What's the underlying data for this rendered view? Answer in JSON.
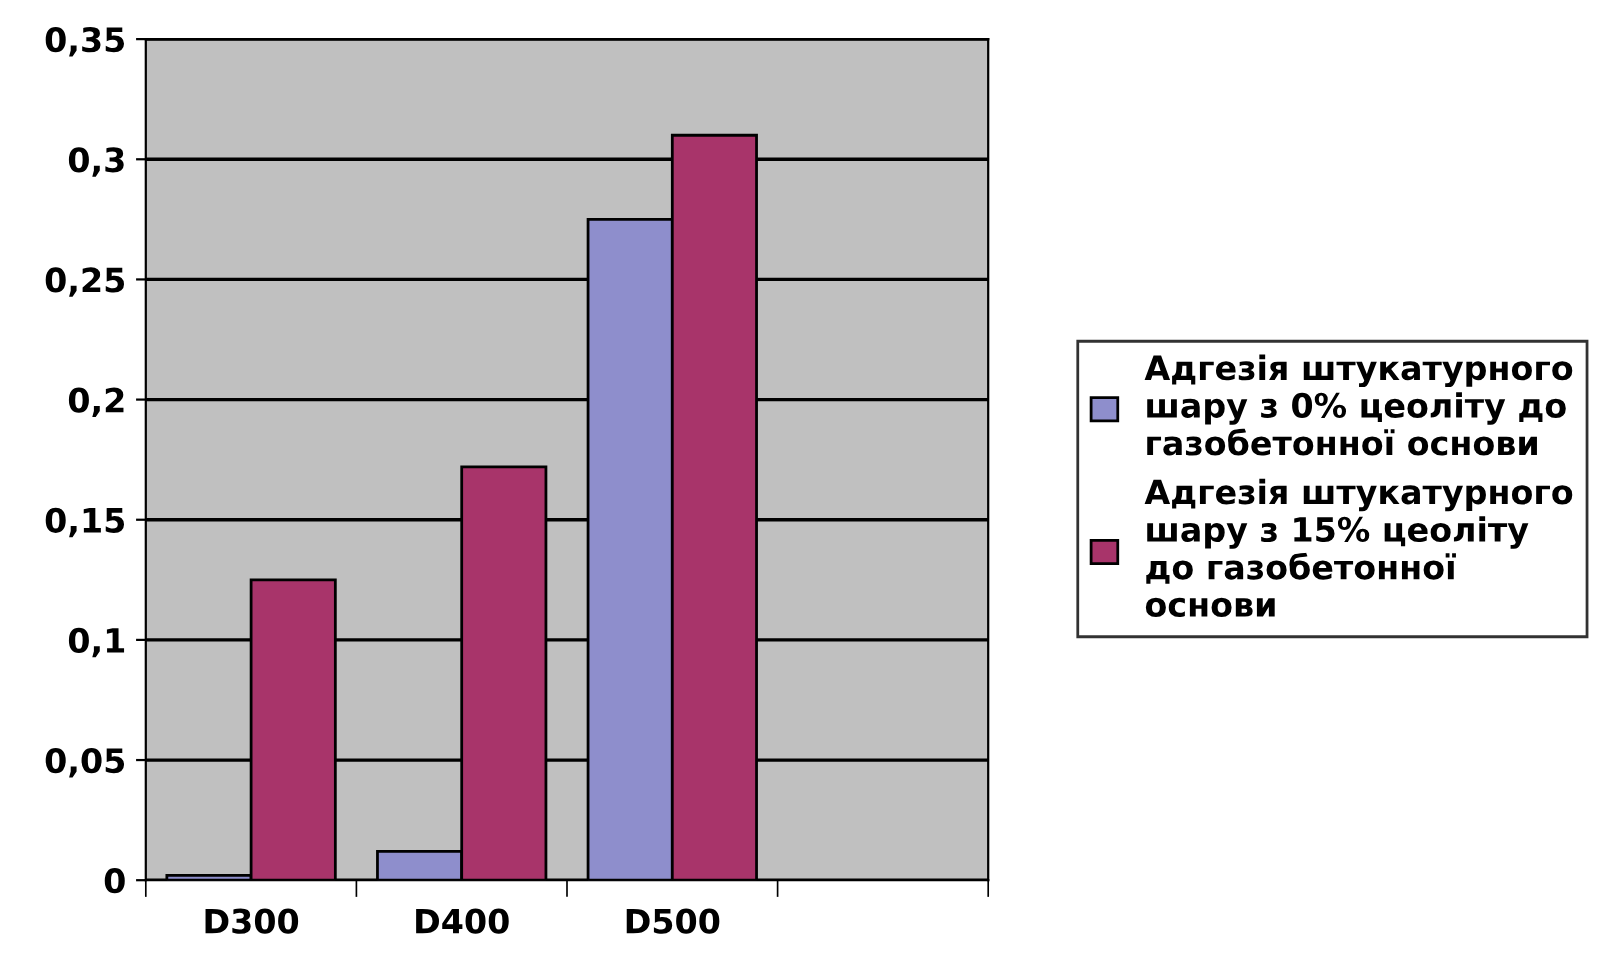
{
  "chart_data": {
    "type": "bar",
    "categories": [
      "D300",
      "D400",
      "D500",
      null
    ],
    "series": [
      {
        "name": "Адгезія штукатурного шару з 0% цеоліту до газобетонної основи",
        "color": "#8e8ecc",
        "values": [
          0.002,
          0.012,
          0.275,
          null
        ]
      },
      {
        "name": "Адгезія штукатурного шару з 15% цеоліту до газобетонної основи",
        "color": "#a8346a",
        "values": [
          0.125,
          0.172,
          0.31,
          null
        ]
      }
    ],
    "ylim": [
      0,
      0.35
    ],
    "yticks": [
      {
        "value": 0,
        "label": "0"
      },
      {
        "value": 0.05,
        "label": "0,05"
      },
      {
        "value": 0.1,
        "label": "0,1"
      },
      {
        "value": 0.15,
        "label": "0,15"
      },
      {
        "value": 0.2,
        "label": "0,2"
      },
      {
        "value": 0.25,
        "label": "0,25"
      },
      {
        "value": 0.3,
        "label": "0,3"
      },
      {
        "value": 0.35,
        "label": "0,35"
      }
    ],
    "grid": "y",
    "legend": "right"
  }
}
